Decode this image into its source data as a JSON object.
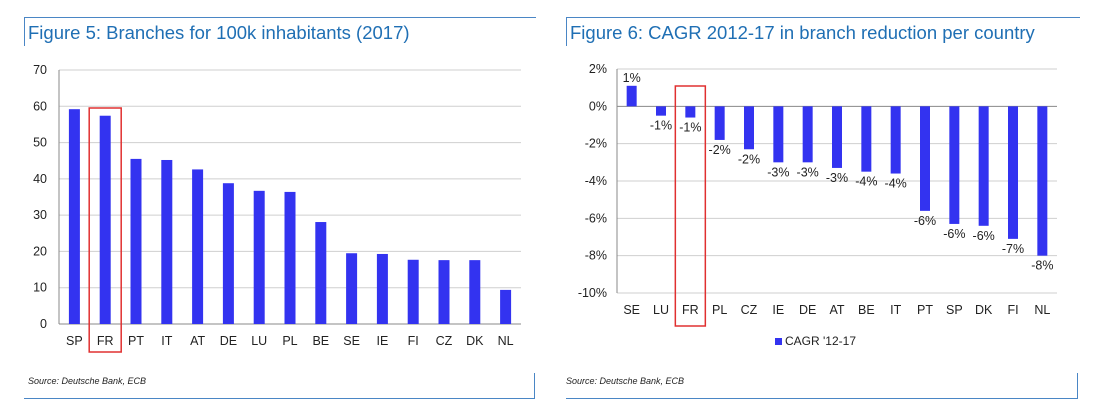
{
  "figures": [
    {
      "title": "Figure 5: Branches for 100k inhabitants (2017)",
      "source": "Source: Deutsche Bank, ECB"
    },
    {
      "title": "Figure 6: CAGR 2012-17 in branch reduction per country",
      "source": "Source: Deutsche Bank, ECB"
    }
  ],
  "colors": {
    "bar": "#3333f0",
    "highlight": "#e03030",
    "title": "#1f6fb4",
    "axis": "#888888"
  },
  "chart_data": [
    {
      "type": "bar",
      "title": "Figure 5: Branches for 100k inhabitants (2017)",
      "xlabel": "",
      "ylabel": "",
      "categories": [
        "SP",
        "FR",
        "PT",
        "IT",
        "AT",
        "DE",
        "LU",
        "PL",
        "BE",
        "SE",
        "IE",
        "FI",
        "CZ",
        "DK",
        "NL"
      ],
      "values": [
        59.2,
        57.4,
        45.5,
        45.2,
        42.6,
        38.8,
        36.7,
        36.4,
        28.1,
        19.5,
        19.3,
        17.7,
        17.6,
        17.6,
        9.4
      ],
      "ylim": [
        0,
        70
      ],
      "yticks": [
        0,
        10,
        20,
        30,
        40,
        50,
        60,
        70
      ],
      "ytick_labels": [
        "0",
        "10",
        "20",
        "30",
        "40",
        "50",
        "60",
        "70"
      ],
      "highlight": "FR",
      "grid": true,
      "legend": null
    },
    {
      "type": "bar",
      "title": "Figure 6: CAGR 2012-17 in branch reduction per country",
      "xlabel": "",
      "ylabel": "",
      "categories": [
        "SE",
        "LU",
        "FR",
        "PL",
        "CZ",
        "IE",
        "DE",
        "AT",
        "BE",
        "IT",
        "PT",
        "SP",
        "DK",
        "FI",
        "NL"
      ],
      "series": [
        {
          "name": "CAGR '12-17",
          "values": [
            1.1,
            -0.5,
            -0.6,
            -1.8,
            -2.3,
            -3.0,
            -3.0,
            -3.3,
            -3.5,
            -3.6,
            -5.6,
            -6.3,
            -6.4,
            -7.1,
            -8.0
          ]
        }
      ],
      "data_labels": [
        "1%",
        "-1%",
        "-1%",
        "-2%",
        "-2%",
        "-3%",
        "-3%",
        "-3%",
        "-4%",
        "-4%",
        "-6%",
        "-6%",
        "-6%",
        "-7%",
        "-8%"
      ],
      "ylim": [
        -10,
        2
      ],
      "yticks": [
        2,
        0,
        -2,
        -4,
        -6,
        -8,
        -10
      ],
      "ytick_labels": [
        "2%",
        "0%",
        "-2%",
        "-4%",
        "-6%",
        "-8%",
        "-10%"
      ],
      "highlight": "FR",
      "grid": true,
      "legend": "bottom-center"
    }
  ]
}
